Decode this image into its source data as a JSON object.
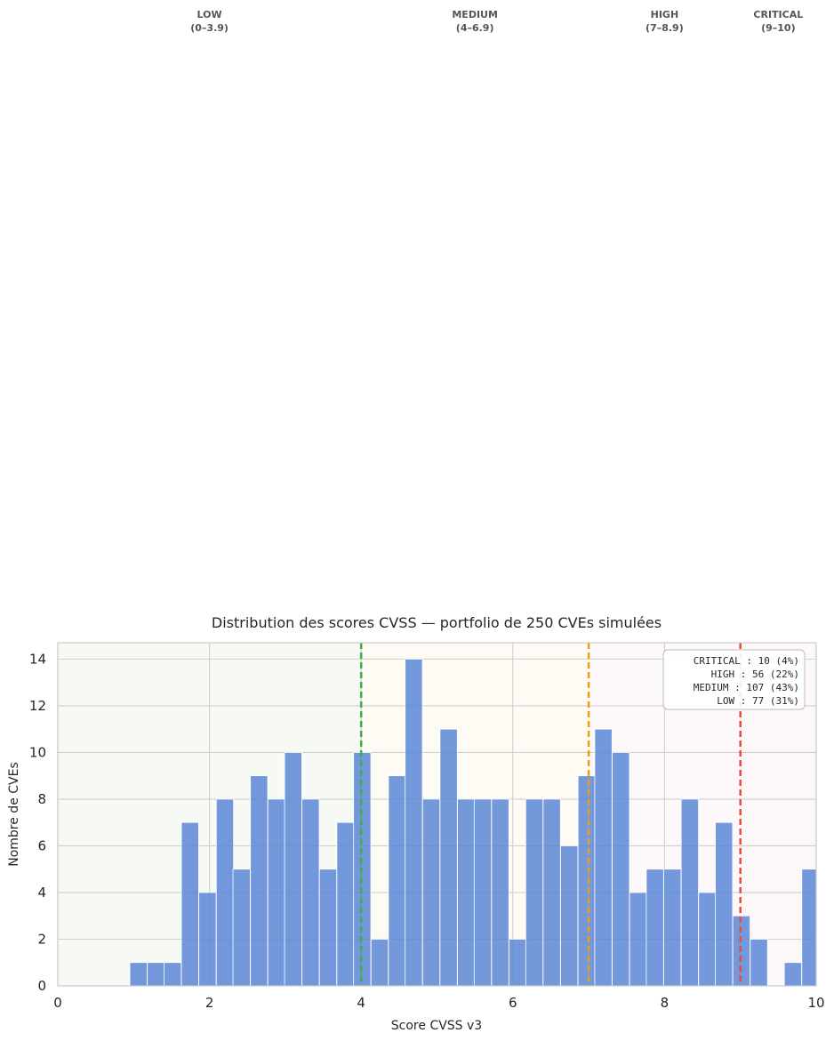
{
  "chart_data": {
    "type": "bar",
    "title": "Distribution des scores CVSS — portfolio de 250 CVEs simulées",
    "xlabel": "Score CVSS v3",
    "ylabel": "Nombre de CVEs",
    "xlim": [
      0,
      10
    ],
    "ylim": [
      0,
      14.7
    ],
    "xticks": [
      "0",
      "2",
      "4",
      "6",
      "8",
      "10"
    ],
    "yticks": [
      "0",
      "2",
      "4",
      "6",
      "8",
      "10",
      "12",
      "14"
    ],
    "grid": true,
    "bin_width": 0.2273,
    "bins": [
      {
        "x0": 0.95,
        "count": 1
      },
      {
        "x0": 1.18,
        "count": 1
      },
      {
        "x0": 1.4,
        "count": 1
      },
      {
        "x0": 1.63,
        "count": 7
      },
      {
        "x0": 1.86,
        "count": 4
      },
      {
        "x0": 2.09,
        "count": 8
      },
      {
        "x0": 2.31,
        "count": 5
      },
      {
        "x0": 2.54,
        "count": 9
      },
      {
        "x0": 2.77,
        "count": 8
      },
      {
        "x0": 2.99,
        "count": 10
      },
      {
        "x0": 3.22,
        "count": 8
      },
      {
        "x0": 3.45,
        "count": 5
      },
      {
        "x0": 3.68,
        "count": 7
      },
      {
        "x0": 3.9,
        "count": 10
      },
      {
        "x0": 4.13,
        "count": 2
      },
      {
        "x0": 4.36,
        "count": 9
      },
      {
        "x0": 4.58,
        "count": 14
      },
      {
        "x0": 4.81,
        "count": 8
      },
      {
        "x0": 5.04,
        "count": 11
      },
      {
        "x0": 5.27,
        "count": 8
      },
      {
        "x0": 5.49,
        "count": 8
      },
      {
        "x0": 5.72,
        "count": 8
      },
      {
        "x0": 5.95,
        "count": 2
      },
      {
        "x0": 6.17,
        "count": 8
      },
      {
        "x0": 6.4,
        "count": 8
      },
      {
        "x0": 6.63,
        "count": 6
      },
      {
        "x0": 6.86,
        "count": 9
      },
      {
        "x0": 7.08,
        "count": 11
      },
      {
        "x0": 7.31,
        "count": 10
      },
      {
        "x0": 7.54,
        "count": 4
      },
      {
        "x0": 7.76,
        "count": 5
      },
      {
        "x0": 7.99,
        "count": 5
      },
      {
        "x0": 8.22,
        "count": 8
      },
      {
        "x0": 8.45,
        "count": 4
      },
      {
        "x0": 8.67,
        "count": 7
      },
      {
        "x0": 8.9,
        "count": 3
      },
      {
        "x0": 9.13,
        "count": 2
      },
      {
        "x0": 9.35,
        "count": 0
      },
      {
        "x0": 9.58,
        "count": 1
      },
      {
        "x0": 9.81,
        "count": 5
      }
    ],
    "bar_color": "#5b87d6",
    "severity_bands": [
      {
        "name": "LOW",
        "range": "(0–3.9)",
        "from": 0,
        "to": 4,
        "fill": "#f7f9f5"
      },
      {
        "name": "MEDIUM",
        "range": "(4–6.9)",
        "from": 4,
        "to": 7,
        "fill": "#fefbf5"
      },
      {
        "name": "HIGH",
        "range": "(7–8.9)",
        "from": 7,
        "to": 9,
        "fill": "#fdf8fa"
      },
      {
        "name": "CRITICAL",
        "range": "(9–10)",
        "from": 9,
        "to": 10,
        "fill": "#fef7f7"
      }
    ],
    "thresholds": [
      {
        "x": 4,
        "color": "#3cb043"
      },
      {
        "x": 7,
        "color": "#f39c12"
      },
      {
        "x": 9,
        "color": "#e74c3c"
      }
    ],
    "summary": {
      "placement": "top-right",
      "lines": [
        "CRITICAL : 10 (4%)",
        "HIGH     : 56 (22%)",
        "MEDIUM   : 107 (43%)",
        "LOW      : 77 (31%)"
      ]
    }
  }
}
